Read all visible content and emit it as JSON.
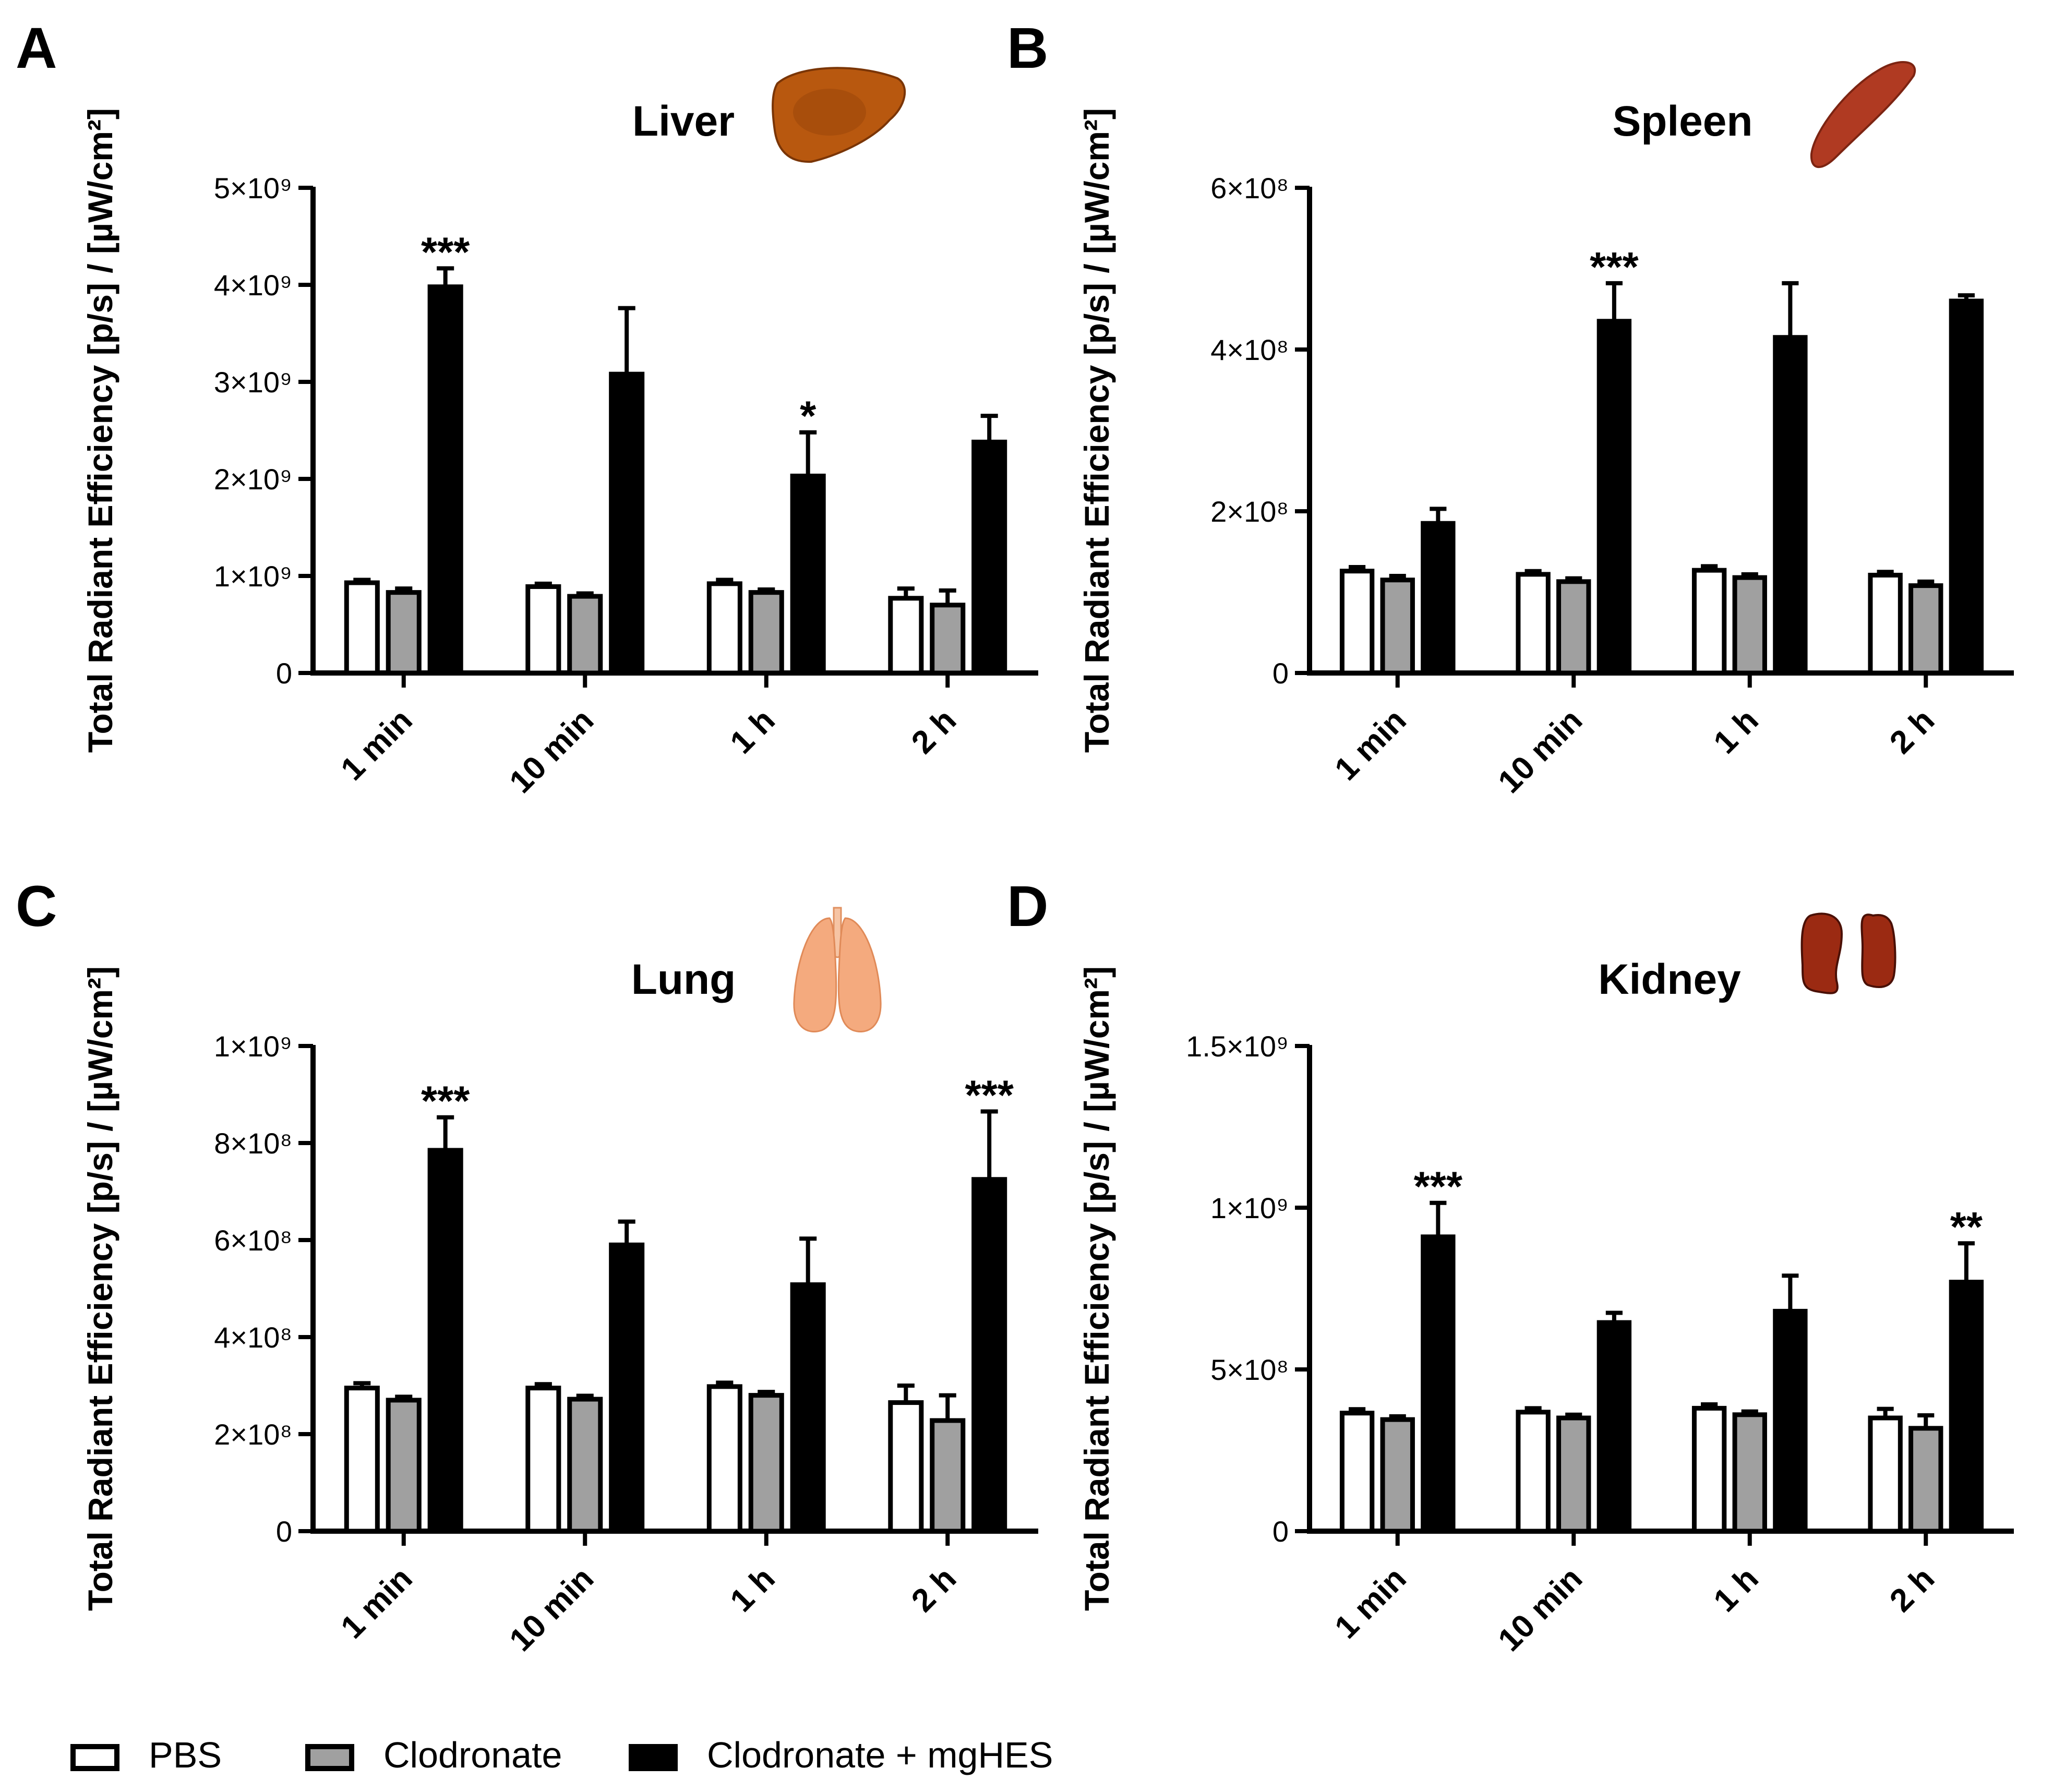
{
  "figure": {
    "legend": [
      {
        "label": "PBS",
        "fill": "#ffffff"
      },
      {
        "label": "Clodronate",
        "fill": "#a0a0a0"
      },
      {
        "label": "Clodronate + mgHES",
        "fill": "#000000"
      }
    ],
    "ylabel": "Total Radiant Efficiency [p/s] / [µW/cm²]",
    "colors": {
      "pbs": "#ffffff",
      "clodronate": "#a0a0a0",
      "mghes": "#000000",
      "axis": "#000000"
    }
  },
  "chart_data": [
    {
      "type": "bar",
      "panel": "A",
      "title": "Liver",
      "organ_icon": "liver-icon",
      "ylabel": "Total Radiant Efficiency [p/s] / [µW/cm²]",
      "categories": [
        "1 min",
        "10 min",
        "1 h",
        "2 h"
      ],
      "ylim": [
        0,
        5000000000
      ],
      "yticks": [
        {
          "value": 0,
          "label": "0"
        },
        {
          "value": 1000000000,
          "label": "1×10⁹"
        },
        {
          "value": 2000000000,
          "label": "2×10⁹"
        },
        {
          "value": 3000000000,
          "label": "3×10⁹"
        },
        {
          "value": 4000000000,
          "label": "4×10⁹"
        },
        {
          "value": 5000000000,
          "label": "5×10⁹"
        }
      ],
      "series": [
        {
          "name": "PBS",
          "values": [
            930000000,
            890000000,
            920000000,
            770000000
          ],
          "errors": [
            30000000,
            30000000,
            40000000,
            100000000
          ]
        },
        {
          "name": "Clodronate",
          "values": [
            830000000,
            790000000,
            830000000,
            700000000
          ],
          "errors": [
            40000000,
            30000000,
            30000000,
            150000000
          ]
        },
        {
          "name": "Clodronate + mgHES",
          "values": [
            3980000000,
            3080000000,
            2030000000,
            2380000000
          ],
          "errors": [
            190000000,
            680000000,
            450000000,
            270000000
          ]
        }
      ],
      "annotations": [
        {
          "category": 0,
          "series": 2,
          "text": "***"
        },
        {
          "category": 2,
          "series": 2,
          "text": "*"
        }
      ]
    },
    {
      "type": "bar",
      "panel": "B",
      "title": "Spleen",
      "organ_icon": "spleen-icon",
      "ylabel": "Total Radiant Efficiency [p/s] / [µW/cm²]",
      "categories": [
        "1 min",
        "10 min",
        "1 h",
        "2 h"
      ],
      "ylim": [
        0,
        600000000
      ],
      "yticks": [
        {
          "value": 0,
          "label": "0"
        },
        {
          "value": 200000000,
          "label": "2×10⁸"
        },
        {
          "value": 400000000,
          "label": "4×10⁸"
        },
        {
          "value": 600000000,
          "label": "6×10⁸"
        }
      ],
      "series": [
        {
          "name": "PBS",
          "values": [
            126000000,
            122000000,
            127000000,
            121000000
          ],
          "errors": [
            5000000,
            4000000,
            5000000,
            4000000
          ]
        },
        {
          "name": "Clodronate",
          "values": [
            115000000,
            113000000,
            118000000,
            108000000
          ],
          "errors": [
            5000000,
            4000000,
            4000000,
            5000000
          ]
        },
        {
          "name": "Clodronate + mgHES",
          "values": [
            185000000,
            435000000,
            415000000,
            460000000
          ],
          "errors": [
            18000000,
            47000000,
            67000000,
            7000000
          ]
        }
      ],
      "annotations": [
        {
          "category": 1,
          "series": 2,
          "text": "***"
        }
      ]
    },
    {
      "type": "bar",
      "panel": "C",
      "title": "Lung",
      "organ_icon": "lung-icon",
      "ylabel": "Total Radiant Efficiency [p/s] / [µW/cm²]",
      "categories": [
        "1 min",
        "10 min",
        "1 h",
        "2 h"
      ],
      "ylim": [
        0,
        1000000000
      ],
      "yticks": [
        {
          "value": 0,
          "label": "0"
        },
        {
          "value": 200000000,
          "label": "2×10⁸"
        },
        {
          "value": 400000000,
          "label": "4×10⁸"
        },
        {
          "value": 600000000,
          "label": "6×10⁸"
        },
        {
          "value": 800000000,
          "label": "8×10⁸"
        },
        {
          "value": 1000000000,
          "label": "1×10⁹"
        }
      ],
      "series": [
        {
          "name": "PBS",
          "values": [
            295000000,
            295000000,
            298000000,
            265000000
          ],
          "errors": [
            10000000,
            8000000,
            8000000,
            35000000
          ]
        },
        {
          "name": "Clodronate",
          "values": [
            270000000,
            272000000,
            280000000,
            228000000
          ],
          "errors": [
            7000000,
            7000000,
            7000000,
            52000000
          ]
        },
        {
          "name": "Clodronate + mgHES",
          "values": [
            785000000,
            590000000,
            508000000,
            725000000
          ],
          "errors": [
            68000000,
            48000000,
            95000000,
            140000000
          ]
        }
      ],
      "annotations": [
        {
          "category": 0,
          "series": 2,
          "text": "***"
        },
        {
          "category": 3,
          "series": 2,
          "text": "***"
        }
      ]
    },
    {
      "type": "bar",
      "panel": "D",
      "title": "Kidney",
      "organ_icon": "kidney-icon",
      "ylabel": "Total Radiant Efficiency [p/s] / [µW/cm²]",
      "categories": [
        "1 min",
        "10 min",
        "1 h",
        "2 h"
      ],
      "ylim": [
        0,
        1500000000
      ],
      "yticks": [
        {
          "value": 0,
          "label": "0"
        },
        {
          "value": 500000000,
          "label": "5×10⁸"
        },
        {
          "value": 1000000000,
          "label": "1×10⁹"
        },
        {
          "value": 1500000000,
          "label": "1.5×10⁹"
        }
      ],
      "series": [
        {
          "name": "PBS",
          "values": [
            365000000,
            368000000,
            380000000,
            350000000
          ],
          "errors": [
            12000000,
            12000000,
            12000000,
            28000000
          ]
        },
        {
          "name": "Clodronate",
          "values": [
            345000000,
            350000000,
            360000000,
            318000000
          ],
          "errors": [
            10000000,
            10000000,
            10000000,
            40000000
          ]
        },
        {
          "name": "Clodronate + mgHES",
          "values": [
            910000000,
            645000000,
            680000000,
            770000000
          ],
          "errors": [
            105000000,
            30000000,
            110000000,
            120000000
          ]
        }
      ],
      "annotations": [
        {
          "category": 0,
          "series": 2,
          "text": "***"
        },
        {
          "category": 3,
          "series": 2,
          "text": "**"
        }
      ]
    }
  ]
}
